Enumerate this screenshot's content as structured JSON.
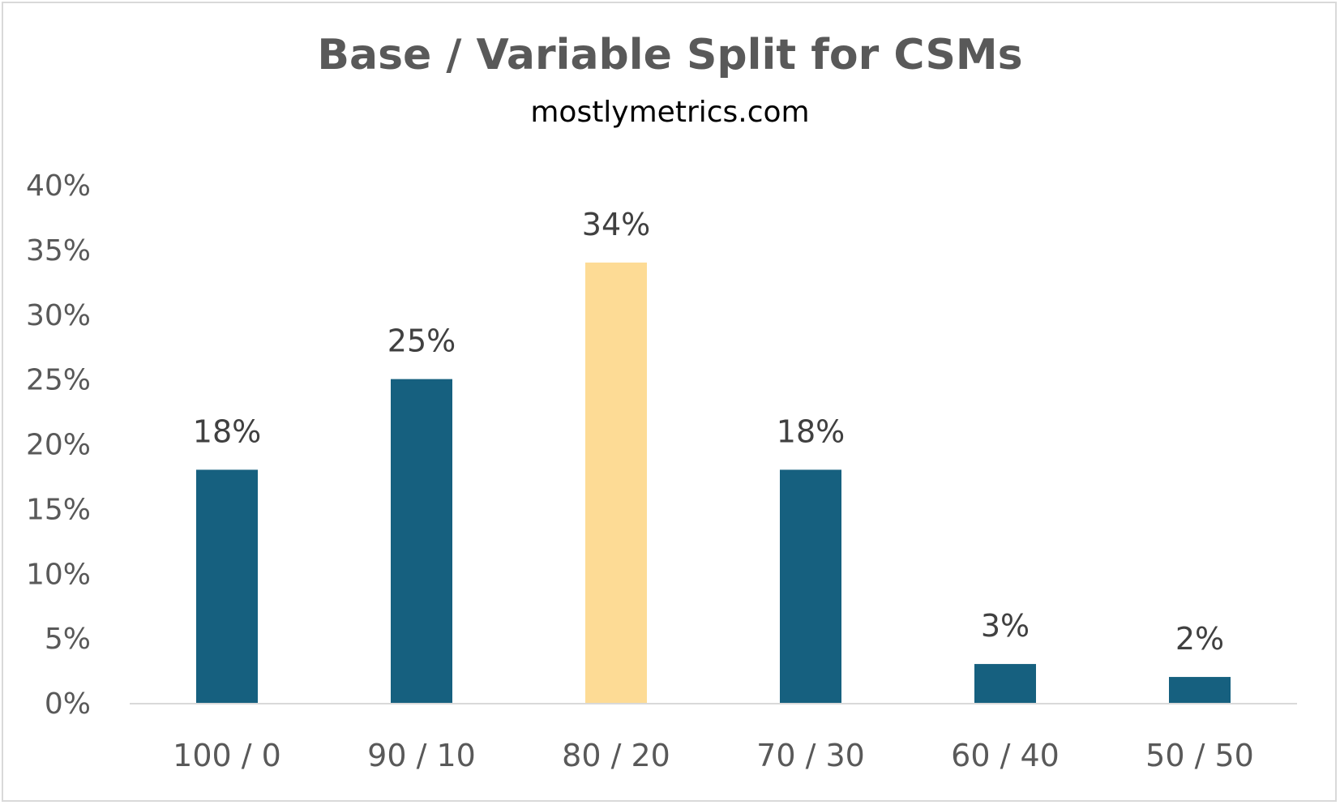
{
  "chart_data": {
    "type": "bar",
    "title": "Base / Variable Split for CSMs",
    "subtitle": "mostlymetrics.com",
    "xlabel": "",
    "ylabel": "",
    "categories": [
      "100 / 0",
      "90 / 10",
      "80 / 20",
      "70 / 30",
      "60 / 40",
      "50 / 50"
    ],
    "values": [
      18,
      25,
      34,
      18,
      3,
      2
    ],
    "data_labels": [
      "18%",
      "25%",
      "34%",
      "18%",
      "3%",
      "2%"
    ],
    "ylim": [
      0,
      40
    ],
    "y_ticks": [
      0,
      5,
      10,
      15,
      20,
      25,
      30,
      35,
      40
    ],
    "y_tick_labels": [
      "0%",
      "5%",
      "10%",
      "15%",
      "20%",
      "25%",
      "30%",
      "35%",
      "40%"
    ],
    "grid": false,
    "legend": "none",
    "colors": {
      "default_bar": "#16607f",
      "highlight_bar": "#fddb95",
      "axis_line": "#d9d9d9"
    },
    "highlight_index": 2
  }
}
